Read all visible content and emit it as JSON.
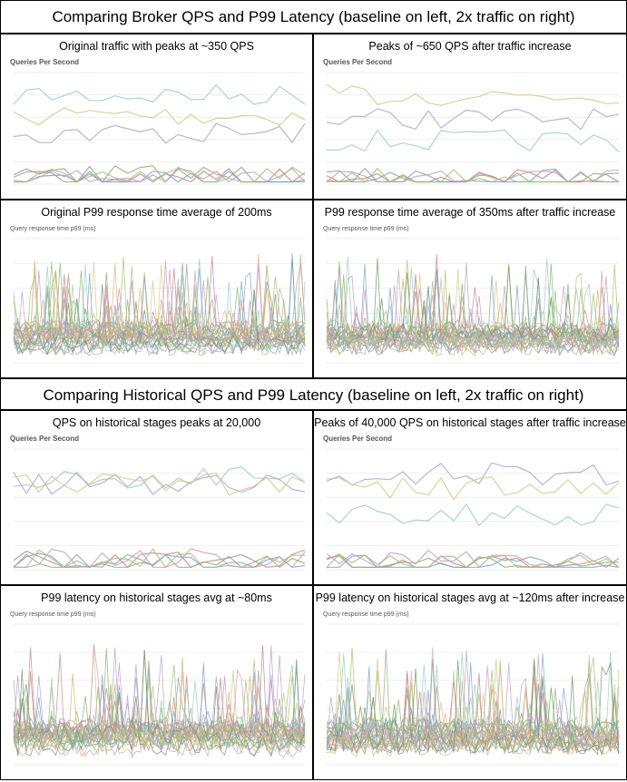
{
  "sections": [
    {
      "title": "Comparing Broker QPS and P99 Latency (baseline on left, 2x traffic on right)",
      "rows": [
        [
          {
            "caption": "Original traffic with peaks at ~350 QPS",
            "chart_label": "Queries Per Second"
          },
          {
            "caption": "Peaks of ~650 QPS after traffic increase",
            "chart_label": "Queries Per Second"
          }
        ],
        [
          {
            "caption": "Original P99 response time average of 200ms",
            "chart_label": "Query response time p99 (ms)"
          },
          {
            "caption": "P99 response time average of 350ms after traffic increase",
            "chart_label": "Query response time p99 (ms)"
          }
        ]
      ]
    },
    {
      "title": "Comparing Historical QPS and P99 Latency (baseline on left, 2x traffic on right)",
      "rows": [
        [
          {
            "caption": "QPS on historical stages peaks at 20,000",
            "chart_label": "Queries Per Second"
          },
          {
            "caption": "Peaks of 40,000 QPS on historical stages after traffic increase",
            "chart_label": "Queries Per Second"
          }
        ],
        [
          {
            "caption": "P99 latency on historical stages avg at ~80ms",
            "chart_label": "Query response time p99 (ms)"
          },
          {
            "caption": "P99 latency on historical stages avg at ~120ms after increase",
            "chart_label": "Query response time p99 (ms)"
          }
        ]
      ]
    }
  ]
}
